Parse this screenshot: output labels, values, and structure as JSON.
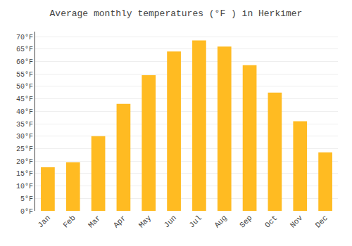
{
  "chart_data": {
    "type": "bar",
    "title": "Average monthly temperatures (°F ) in Herkimer",
    "categories": [
      "Jan",
      "Feb",
      "Mar",
      "Apr",
      "May",
      "Jun",
      "Jul",
      "Aug",
      "Sep",
      "Oct",
      "Nov",
      "Dec"
    ],
    "values": [
      17.5,
      19.5,
      30.0,
      43.0,
      54.5,
      64.0,
      68.5,
      66.0,
      58.5,
      47.5,
      36.0,
      23.5
    ],
    "color": "#FFBB22",
    "ylim": [
      0,
      72
    ],
    "yticks": [
      {
        "value": 0,
        "label": "0°F"
      },
      {
        "value": 5,
        "label": "5°F"
      },
      {
        "value": 10,
        "label": "10°F"
      },
      {
        "value": 15,
        "label": "15°F"
      },
      {
        "value": 20,
        "label": "20°F"
      },
      {
        "value": 25,
        "label": "25°F"
      },
      {
        "value": 30,
        "label": "30°F"
      },
      {
        "value": 35,
        "label": "35°F"
      },
      {
        "value": 40,
        "label": "40°F"
      },
      {
        "value": 45,
        "label": "45°F"
      },
      {
        "value": 50,
        "label": "50°F"
      },
      {
        "value": 55,
        "label": "55°F"
      },
      {
        "value": 60,
        "label": "60°F"
      },
      {
        "value": 65,
        "label": "65°F"
      },
      {
        "value": 70,
        "label": "70°F"
      }
    ],
    "grid": true
  }
}
